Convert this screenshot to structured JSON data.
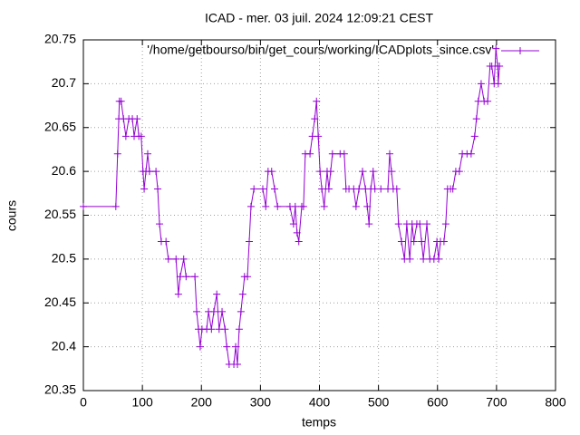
{
  "chart_data": {
    "type": "line",
    "title": "ICAD - mer. 03 juil. 2024 12:09:21 CEST",
    "x_label": "temps",
    "y_label": "cours",
    "x": [
      0,
      55,
      58,
      60,
      61,
      64,
      68,
      72,
      77,
      83,
      86,
      91,
      94,
      98,
      101,
      103,
      106,
      109,
      112,
      123,
      126,
      129,
      132,
      140,
      144,
      157,
      161,
      164,
      170,
      174,
      189,
      192,
      195,
      198,
      201,
      209,
      212,
      217,
      221,
      226,
      230,
      235,
      240,
      243,
      247,
      255,
      258,
      261,
      264,
      267,
      270,
      273,
      278,
      281,
      284,
      289,
      304,
      309,
      313,
      319,
      324,
      329,
      350,
      356,
      359,
      362,
      365,
      370,
      373,
      376,
      384,
      388,
      392,
      395,
      398,
      401,
      404,
      408,
      413,
      416,
      419,
      422,
      435,
      442,
      445,
      450,
      458,
      462,
      467,
      473,
      478,
      481,
      484,
      487,
      491,
      494,
      504,
      516,
      519,
      522,
      525,
      531,
      534,
      539,
      544,
      548,
      553,
      557,
      560,
      565,
      570,
      573,
      576,
      582,
      587,
      594,
      599,
      602,
      605,
      611,
      614,
      617,
      622,
      626,
      631,
      637,
      642,
      650,
      657,
      663,
      666,
      669,
      674,
      679,
      685,
      689,
      692,
      696,
      699,
      702,
      703,
      705
    ],
    "series": [
      {
        "name": "'/home/getbourso/bin/get_cours/working/ICADplots_since.csv'",
        "color": "#9400d3",
        "values": [
          20.56,
          20.56,
          20.62,
          20.66,
          20.68,
          20.68,
          20.66,
          20.64,
          20.66,
          20.66,
          20.64,
          20.66,
          20.64,
          20.64,
          20.6,
          20.58,
          20.6,
          20.62,
          20.6,
          20.6,
          20.58,
          20.54,
          20.52,
          20.52,
          20.5,
          20.5,
          20.46,
          20.48,
          20.5,
          20.48,
          20.48,
          20.44,
          20.42,
          20.4,
          20.42,
          20.42,
          20.44,
          20.42,
          20.44,
          20.46,
          20.42,
          20.44,
          20.42,
          20.4,
          20.38,
          20.38,
          20.4,
          20.38,
          20.42,
          20.44,
          20.46,
          20.48,
          20.48,
          20.52,
          20.56,
          20.58,
          20.58,
          20.56,
          20.6,
          20.6,
          20.58,
          20.56,
          20.56,
          20.54,
          20.56,
          20.53,
          20.52,
          20.56,
          20.56,
          20.62,
          20.62,
          20.64,
          20.66,
          20.68,
          20.64,
          20.6,
          20.58,
          20.56,
          20.6,
          20.58,
          20.6,
          20.62,
          20.62,
          20.62,
          20.58,
          20.58,
          20.58,
          20.56,
          20.58,
          20.6,
          20.58,
          20.56,
          20.54,
          20.58,
          20.6,
          20.58,
          20.58,
          20.58,
          20.62,
          20.6,
          20.58,
          20.58,
          20.54,
          20.52,
          20.5,
          20.54,
          20.5,
          20.54,
          20.52,
          20.54,
          20.54,
          20.52,
          20.5,
          20.54,
          20.5,
          20.5,
          20.52,
          20.5,
          20.52,
          20.52,
          20.54,
          20.58,
          20.58,
          20.58,
          20.6,
          20.6,
          20.62,
          20.62,
          20.62,
          20.64,
          20.66,
          20.68,
          20.7,
          20.68,
          20.68,
          20.72,
          20.72,
          20.7,
          20.74,
          20.72,
          20.7,
          20.72
        ]
      }
    ],
    "xlim": [
      0,
      800
    ],
    "xticks": [
      0,
      100,
      200,
      300,
      400,
      500,
      600,
      700,
      800
    ],
    "ylim": [
      20.35,
      20.75
    ],
    "yticks": [
      20.35,
      20.4,
      20.45,
      20.5,
      20.55,
      20.6,
      20.65,
      20.7,
      20.75
    ],
    "grid": true,
    "legend": "top-right",
    "markers": "plus"
  }
}
